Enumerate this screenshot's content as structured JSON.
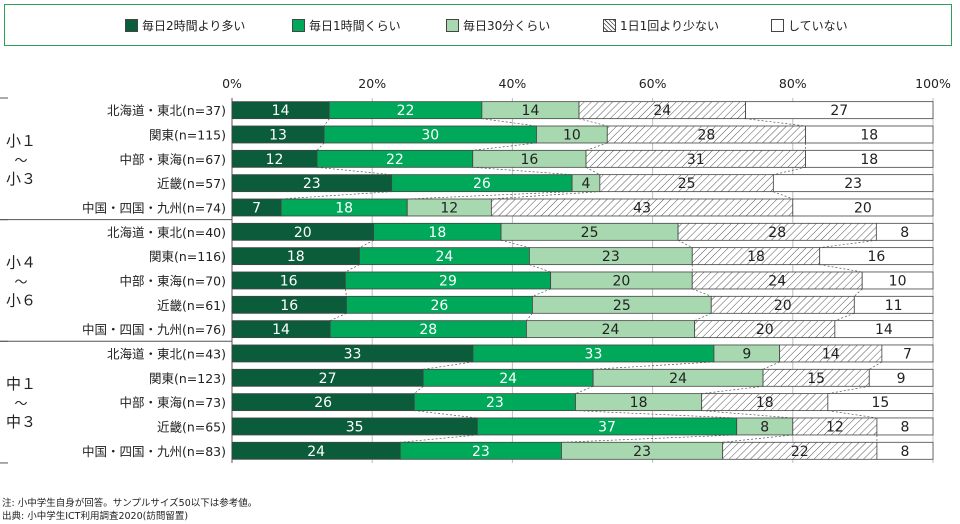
{
  "legend": [
    {
      "label": "毎日2時間より多い",
      "color": "#0b5c3a",
      "pattern": "solid"
    },
    {
      "label": "毎日1時間くらい",
      "color": "#00a85a",
      "pattern": "solid"
    },
    {
      "label": "毎日30分くらい",
      "color": "#a8d8b0",
      "pattern": "solid"
    },
    {
      "label": "1日1回より少ない",
      "color": "#ffffff",
      "pattern": "hatch"
    },
    {
      "label": "していない",
      "color": "#ffffff",
      "pattern": "solid"
    }
  ],
  "notes": {
    "note": "注: 小中学生自身が回答。サンプルサイズ50以下は参考値。",
    "source": "出典: 小中学生ICT利用調査2020(訪問留置)"
  },
  "chart_data": {
    "type": "bar",
    "orientation": "horizontal-stacked-100",
    "x_ticks": [
      "0%",
      "20%",
      "40%",
      "60%",
      "80%",
      "100%"
    ],
    "xlim": [
      0,
      100
    ],
    "grid": true,
    "legend_position": "top",
    "groups": [
      {
        "label": [
          "小１",
          "〜",
          "小３"
        ],
        "categories": [
          "北海道・東北(n=37)",
          "関東(n=115)",
          "中部・東海(n=67)",
          "近畿(n=57)",
          "中国・四国・九州(n=74)"
        ]
      },
      {
        "label": [
          "小４",
          "〜",
          "小６"
        ],
        "categories": [
          "北海道・東北(n=40)",
          "関東(n=116)",
          "中部・東海(n=70)",
          "近畿(n=61)",
          "中国・四国・九州(n=76)"
        ]
      },
      {
        "label": [
          "中１",
          "〜",
          "中３"
        ],
        "categories": [
          "北海道・東北(n=43)",
          "関東(n=123)",
          "中部・東海(n=73)",
          "近畿(n=65)",
          "中国・四国・九州(n=83)"
        ]
      }
    ],
    "series": [
      {
        "name": "毎日2時間より多い",
        "values": [
          14,
          13,
          12,
          23,
          7,
          20,
          18,
          16,
          16,
          14,
          33,
          27,
          26,
          35,
          24
        ]
      },
      {
        "name": "毎日1時間くらい",
        "values": [
          22,
          30,
          22,
          26,
          18,
          18,
          24,
          29,
          26,
          28,
          33,
          24,
          23,
          37,
          23
        ]
      },
      {
        "name": "毎日30分くらい",
        "values": [
          14,
          10,
          16,
          4,
          12,
          25,
          23,
          20,
          25,
          24,
          9,
          24,
          18,
          8,
          23
        ]
      },
      {
        "name": "1日1回より少ない",
        "values": [
          24,
          28,
          31,
          25,
          43,
          28,
          18,
          24,
          20,
          20,
          14,
          15,
          18,
          12,
          22
        ]
      },
      {
        "name": "していない",
        "values": [
          27,
          18,
          18,
          23,
          20,
          8,
          16,
          10,
          11,
          14,
          7,
          9,
          15,
          8,
          8
        ]
      }
    ]
  }
}
